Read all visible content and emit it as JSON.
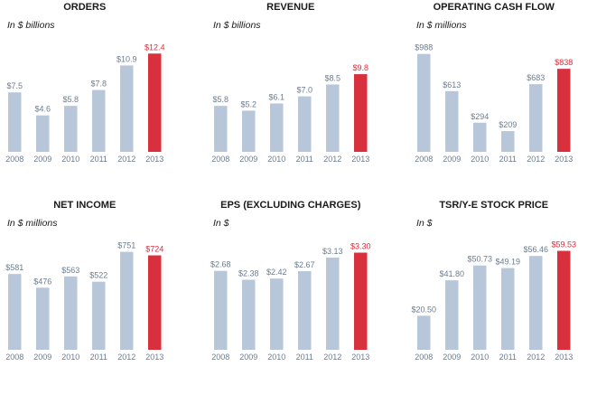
{
  "colors": {
    "bar": "#b7c6d8",
    "highlight": "#d9303e",
    "text": "#1a1a1a",
    "muted": "#6b7c8f"
  },
  "chart_data": [
    {
      "type": "bar",
      "title": "ORDERS",
      "subtitle": "In $ billions",
      "categories": [
        "2008",
        "2009",
        "2010",
        "2011",
        "2012",
        "2013"
      ],
      "values": [
        7.5,
        4.6,
        5.8,
        7.8,
        10.9,
        12.4
      ],
      "labels": [
        "$7.5",
        "$4.6",
        "$5.8",
        "$7.8",
        "$10.9",
        "$12.4"
      ],
      "highlight_index": 5,
      "ylim": [
        0,
        13
      ]
    },
    {
      "type": "bar",
      "title": "REVENUE",
      "subtitle": "In $ billions",
      "categories": [
        "2008",
        "2009",
        "2010",
        "2011",
        "2012",
        "2013"
      ],
      "values": [
        5.8,
        5.2,
        6.1,
        7.0,
        8.5,
        9.8
      ],
      "labels": [
        "$5.8",
        "$5.2",
        "$6.1",
        "$7.0",
        "$8.5",
        "$9.8"
      ],
      "highlight_index": 5,
      "ylim": [
        0,
        13
      ]
    },
    {
      "type": "bar",
      "title": "OPERATING CASH FLOW",
      "subtitle": "In $ millions",
      "categories": [
        "2008",
        "2009",
        "2010",
        "2011",
        "2012",
        "2013"
      ],
      "values": [
        988,
        613,
        294,
        209,
        683,
        838
      ],
      "labels": [
        "$988",
        "$613",
        "$294",
        "$209",
        "$683",
        "$838"
      ],
      "highlight_index": 5,
      "ylim": [
        0,
        1040
      ]
    },
    {
      "type": "bar",
      "title": "NET INCOME",
      "subtitle": "In $ millions",
      "categories": [
        "2008",
        "2009",
        "2010",
        "2011",
        "2012",
        "2013"
      ],
      "values": [
        581,
        476,
        563,
        522,
        751,
        724
      ],
      "labels": [
        "$581",
        "$476",
        "$563",
        "$522",
        "$751",
        "$724"
      ],
      "highlight_index": 5,
      "ylim": [
        0,
        790
      ]
    },
    {
      "type": "bar",
      "title": "EPS (EXCLUDING CHARGES)",
      "subtitle": "In $",
      "categories": [
        "2008",
        "2009",
        "2010",
        "2011",
        "2012",
        "2013"
      ],
      "values": [
        2.68,
        2.38,
        2.42,
        2.67,
        3.13,
        3.3
      ],
      "labels": [
        "$2.68",
        "$2.38",
        "$2.42",
        "$2.67",
        "$3.13",
        "$3.30"
      ],
      "highlight_index": 5,
      "ylim": [
        0,
        3.5
      ]
    },
    {
      "type": "bar",
      "title": "TSR/Y-E STOCK PRICE",
      "subtitle": "In $",
      "categories": [
        "2008",
        "2009",
        "2010",
        "2011",
        "2012",
        "2013"
      ],
      "values": [
        20.5,
        41.8,
        50.73,
        49.19,
        56.46,
        59.53
      ],
      "labels": [
        "$20.50",
        "$41.80",
        "$50.73",
        "$49.19",
        "$56.46",
        "$59.53"
      ],
      "highlight_index": 5,
      "ylim": [
        0,
        62
      ]
    }
  ]
}
